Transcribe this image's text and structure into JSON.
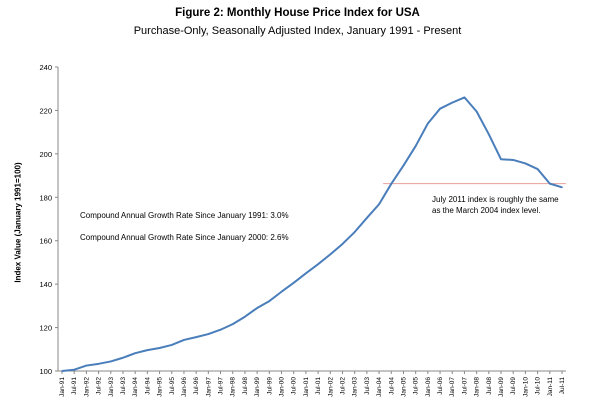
{
  "chart_data": {
    "type": "line",
    "title": "Figure 2: Monthly House Price Index for USA",
    "subtitle": "Purchase-Only, Seasonally Adjusted Index, January 1991 - Present",
    "xlabel": "",
    "ylabel": "Index Value (January 1991=100)",
    "ylim": [
      100,
      240
    ],
    "yticks": [
      100,
      120,
      140,
      160,
      180,
      200,
      220,
      240
    ],
    "grid": false,
    "tick_labels": [
      "Jan-91",
      "Jul-91",
      "Jan-92",
      "Jul-92",
      "Jan-93",
      "Jul-93",
      "Jan-94",
      "Jul-94",
      "Jan-95",
      "Jul-95",
      "Jan-96",
      "Jul-96",
      "Jan-97",
      "Jul-97",
      "Jan-98",
      "Jul-98",
      "Jan-99",
      "Jul-99",
      "Jan-00",
      "Jul-00",
      "Jan-01",
      "Jul-01",
      "Jan-02",
      "Jul-02",
      "Jan-03",
      "Jul-03",
      "Jan-04",
      "Jul-04",
      "Jan-05",
      "Jul-05",
      "Jan-06",
      "Jul-06",
      "Jan-07",
      "Jul-07",
      "Jan-08",
      "Jul-08",
      "Jan-09",
      "Jul-09",
      "Jan-10",
      "Jul-10",
      "Jan-11",
      "Jul-11"
    ],
    "series": [
      {
        "color": "#4a7ebb",
        "x": [
          "Jan-91",
          "Jul-91",
          "Jan-92",
          "Jul-92",
          "Jan-93",
          "Jul-93",
          "Jan-94",
          "Jul-94",
          "Jan-95",
          "Jul-95",
          "Jan-96",
          "Jul-96",
          "Jan-97",
          "Jul-97",
          "Jan-98",
          "Jul-98",
          "Jan-99",
          "Jul-99",
          "Jan-00",
          "Jul-00",
          "Jan-01",
          "Jul-01",
          "Jan-02",
          "Jul-02",
          "Jan-03",
          "Jul-03",
          "Jan-04",
          "Jul-04",
          "Jan-05",
          "Jul-05",
          "Jan-06",
          "Jul-06",
          "Jan-07",
          "Jul-07",
          "Jan-08",
          "Jul-08",
          "Jan-09",
          "Jul-09",
          "Jan-10",
          "Jul-10",
          "Jan-11",
          "Jul-11"
        ],
        "values": [
          100.0,
          100.6,
          102.5,
          103.3,
          104.4,
          106.1,
          108.2,
          109.6,
          110.6,
          112.0,
          114.3,
          115.6,
          117.0,
          119.0,
          121.6,
          125.0,
          129.0,
          132.2,
          136.5,
          140.6,
          145.0,
          149.2,
          153.7,
          158.5,
          164.0,
          170.5,
          176.8,
          186.2,
          194.6,
          203.6,
          214.0,
          220.8,
          223.6,
          226.0,
          219.5,
          209.0,
          197.5,
          197.2,
          195.6,
          193.0,
          186.3,
          184.6
        ]
      }
    ],
    "reference_line": {
      "value": 186.3,
      "color": "#e8a19a"
    },
    "annotations": {
      "cagr_1991": "Compound Annual Growth Rate Since January 1991:  3.0%",
      "cagr_2000": "Compound Annual Growth Rate Since January 2000:  2.6%",
      "callout": "July 2011 index is roughly the same as the March 2004 index level."
    }
  }
}
